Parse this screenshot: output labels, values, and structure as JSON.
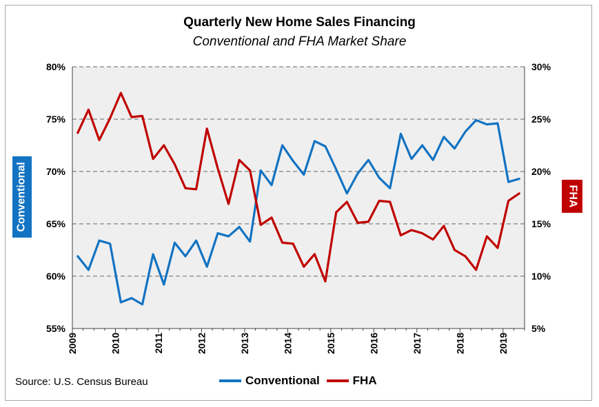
{
  "header": {
    "title": "Quarterly New Home Sales Financing",
    "subtitle": "Conventional and FHA Market Share"
  },
  "axes": {
    "left_label": "Conventional",
    "right_label": "FHA"
  },
  "footer": {
    "source": "Source: U.S. Census Bureau"
  },
  "legend": [
    {
      "label": "Conventional",
      "color": "#1273c2"
    },
    {
      "label": "FHA",
      "color": "#c00000"
    }
  ],
  "chart_data": {
    "type": "line",
    "title": "Quarterly New Home Sales Financing",
    "subtitle": "Conventional and FHA Market Share",
    "x_tick_labels": [
      "2009",
      "2010",
      "2011",
      "2012",
      "2013",
      "2014",
      "2015",
      "2016",
      "2017",
      "2018",
      "2019"
    ],
    "y_left": {
      "label": "Conventional",
      "ylim": [
        55,
        80
      ],
      "ticks": [
        "55%",
        "60%",
        "65%",
        "70%",
        "75%",
        "80%"
      ]
    },
    "y_right": {
      "label": "FHA",
      "ylim": [
        5,
        30
      ],
      "ticks": [
        "5%",
        "10%",
        "15%",
        "20%",
        "25%",
        "30%"
      ]
    },
    "x_quarters": [
      "2009Q1",
      "2009Q2",
      "2009Q3",
      "2009Q4",
      "2010Q1",
      "2010Q2",
      "2010Q3",
      "2010Q4",
      "2011Q1",
      "2011Q2",
      "2011Q3",
      "2011Q4",
      "2012Q1",
      "2012Q2",
      "2012Q3",
      "2012Q4",
      "2013Q1",
      "2013Q2",
      "2013Q3",
      "2013Q4",
      "2014Q1",
      "2014Q2",
      "2014Q3",
      "2014Q4",
      "2015Q1",
      "2015Q2",
      "2015Q3",
      "2015Q4",
      "2016Q1",
      "2016Q2",
      "2016Q3",
      "2016Q4",
      "2017Q1",
      "2017Q2",
      "2017Q3",
      "2017Q4",
      "2018Q1",
      "2018Q2",
      "2018Q3",
      "2018Q4",
      "2019Q1",
      "2019Q2"
    ],
    "series": [
      {
        "name": "Conventional",
        "axis": "left",
        "color": "#1273c2",
        "values": [
          61.9,
          60.6,
          63.4,
          63.1,
          57.5,
          57.9,
          57.3,
          62.1,
          59.2,
          63.2,
          61.9,
          63.4,
          60.9,
          64.1,
          63.8,
          64.7,
          63.3,
          70.1,
          68.7,
          72.5,
          71.0,
          69.7,
          72.9,
          72.4,
          70.2,
          67.9,
          69.8,
          71.1,
          69.4,
          68.4,
          73.6,
          71.2,
          72.5,
          71.1,
          73.3,
          72.2,
          73.8,
          74.9,
          74.5,
          74.6,
          69.0,
          69.3
        ]
      },
      {
        "name": "FHA",
        "axis": "right",
        "color": "#c00000",
        "values": [
          23.7,
          25.9,
          23.0,
          25.1,
          27.5,
          25.2,
          25.3,
          21.2,
          22.5,
          20.7,
          18.4,
          18.3,
          24.1,
          20.3,
          16.9,
          21.1,
          20.1,
          14.9,
          15.6,
          13.2,
          13.1,
          10.9,
          12.1,
          9.5,
          16.1,
          17.1,
          15.1,
          15.2,
          17.2,
          17.1,
          13.9,
          14.4,
          14.1,
          13.5,
          14.8,
          12.5,
          11.9,
          10.6,
          13.8,
          12.7,
          17.2,
          17.9
        ]
      }
    ],
    "grid": "horizontal dashed",
    "legend_position": "bottom"
  }
}
